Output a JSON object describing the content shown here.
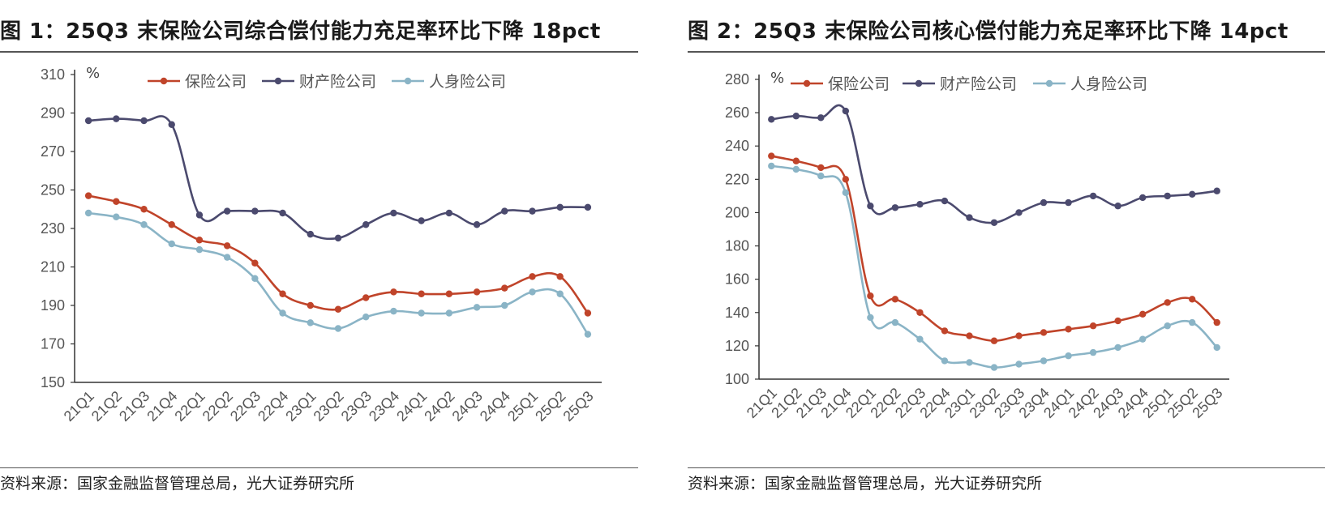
{
  "source_text": "资料来源：国家金融监督管理总局，光大证券研究所",
  "chart_data": [
    {
      "type": "line",
      "title": "图 1：25Q3 末保险公司综合偿付能力充足率环比下降 18pct",
      "ylabel": "%",
      "ylim": [
        150,
        310
      ],
      "yticks": [
        150,
        170,
        190,
        210,
        230,
        250,
        270,
        290,
        310
      ],
      "grid": false,
      "legend": "top",
      "categories": [
        "21Q1",
        "21Q2",
        "21Q3",
        "21Q4",
        "22Q1",
        "22Q2",
        "22Q3",
        "22Q4",
        "23Q1",
        "23Q2",
        "23Q3",
        "23Q4",
        "24Q1",
        "24Q2",
        "24Q3",
        "24Q4",
        "25Q1",
        "25Q2",
        "25Q3"
      ],
      "series": [
        {
          "name": "保险公司",
          "color": "#C0442A",
          "values": [
            247,
            244,
            240,
            232,
            224,
            221,
            212,
            196,
            190,
            188,
            194,
            197,
            196,
            196,
            197,
            199,
            205,
            205,
            186
          ]
        },
        {
          "name": "财产险公司",
          "color": "#4B4A6E",
          "values": [
            286,
            287,
            286,
            284,
            237,
            239,
            239,
            238,
            227,
            225,
            232,
            238,
            234,
            238,
            232,
            239,
            239,
            241,
            241
          ]
        },
        {
          "name": "人身险公司",
          "color": "#8AB4C6",
          "values": [
            238,
            236,
            232,
            222,
            219,
            215,
            204,
            186,
            181,
            178,
            184,
            187,
            186,
            186,
            189,
            190,
            197,
            196,
            175
          ]
        }
      ]
    },
    {
      "type": "line",
      "title": "图 2：25Q3 末保险公司核心偿付能力充足率环比下降 14pct",
      "ylabel": "%",
      "ylim": [
        100,
        280
      ],
      "yticks": [
        100,
        120,
        140,
        160,
        180,
        200,
        220,
        240,
        260,
        280
      ],
      "grid": false,
      "legend": "top",
      "categories": [
        "21Q1",
        "21Q2",
        "21Q3",
        "21Q4",
        "22Q1",
        "22Q2",
        "22Q3",
        "22Q4",
        "23Q1",
        "23Q2",
        "23Q3",
        "23Q4",
        "24Q1",
        "24Q2",
        "24Q3",
        "24Q4",
        "25Q1",
        "25Q2",
        "25Q3"
      ],
      "series": [
        {
          "name": "保险公司",
          "color": "#C0442A",
          "values": [
            234,
            231,
            227,
            220,
            150,
            148,
            140,
            129,
            126,
            123,
            126,
            128,
            130,
            132,
            135,
            139,
            146,
            148,
            134
          ]
        },
        {
          "name": "财产险公司",
          "color": "#4B4A6E",
          "values": [
            256,
            258,
            257,
            261,
            204,
            203,
            205,
            207,
            197,
            194,
            200,
            206,
            206,
            210,
            204,
            209,
            210,
            211,
            213
          ]
        },
        {
          "name": "人身险公司",
          "color": "#8AB4C6",
          "values": [
            228,
            226,
            222,
            212,
            137,
            134,
            124,
            111,
            110,
            107,
            109,
            111,
            114,
            116,
            119,
            124,
            132,
            134,
            119
          ]
        }
      ]
    }
  ]
}
